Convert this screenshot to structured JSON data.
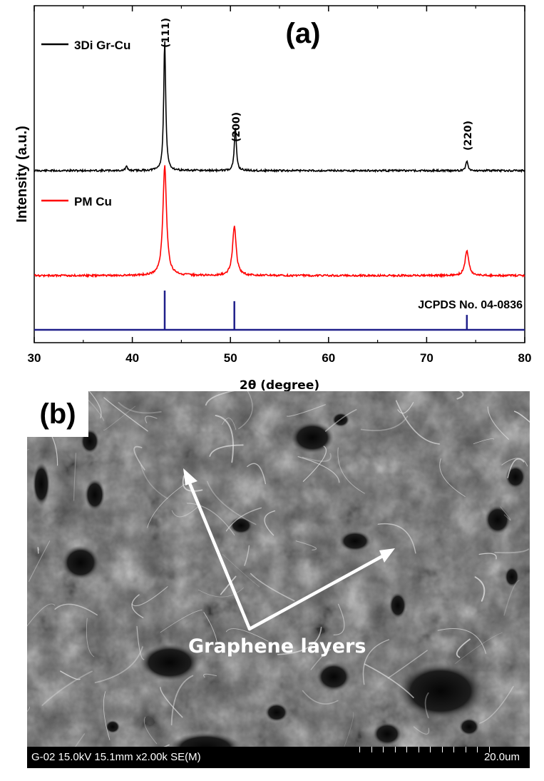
{
  "chart_data": [
    {
      "type": "line",
      "panel_label": "(a)",
      "xlabel": "2θ (degree)",
      "ylabel": "Intensity (a.u.)",
      "xlim": [
        30,
        80
      ],
      "xticks": [
        30,
        40,
        50,
        60,
        70,
        80
      ],
      "series": [
        {
          "name": "3Di Gr-Cu",
          "color": "#000000",
          "peaks": [
            {
              "x": 39.4,
              "rel": 0.03
            },
            {
              "x": 43.3,
              "rel": 1.0
            },
            {
              "x": 50.5,
              "rel": 0.34
            },
            {
              "x": 74.1,
              "rel": 0.08
            }
          ]
        },
        {
          "name": "PM Cu",
          "color": "#ff0000",
          "peaks": [
            {
              "x": 43.3,
              "rel": 1.0
            },
            {
              "x": 50.4,
              "rel": 0.45
            },
            {
              "x": 74.1,
              "rel": 0.23
            }
          ]
        },
        {
          "name": "JCPDS No. 04-0836",
          "color": "#1f1f8a",
          "type": "stick",
          "peaks": [
            {
              "x": 43.3,
              "rel": 1.0
            },
            {
              "x": 50.4,
              "rel": 0.73
            },
            {
              "x": 74.1,
              "rel": 0.38
            }
          ]
        }
      ],
      "annotations": [
        {
          "text": "(111)",
          "x": 43.3
        },
        {
          "text": "(200)",
          "x": 50.5
        },
        {
          "text": "(220)",
          "x": 74.1
        }
      ]
    }
  ],
  "sem": {
    "panel_label": "(b)",
    "label": "Graphene layers",
    "info": "G-02 15.0kV 15.1mm x2.00k SE(M)",
    "scale": "20.0um"
  }
}
